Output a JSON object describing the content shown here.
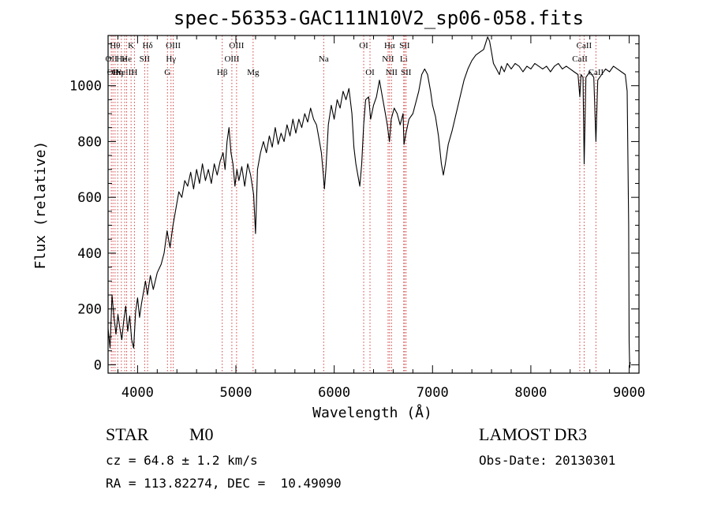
{
  "chart_data": {
    "type": "line",
    "title": "spec-56353-GAC111N10V2_sp06-058.fits",
    "xlabel": "Wavelength (Å)",
    "ylabel": "Flux (relative)",
    "xlim": [
      3700,
      9100
    ],
    "ylim": [
      -30,
      1180
    ],
    "x_ticks": [
      {
        "value": 4000,
        "label": "4000"
      },
      {
        "value": 5000,
        "label": "5000"
      },
      {
        "value": 6000,
        "label": "6000"
      },
      {
        "value": 7000,
        "label": "7000"
      },
      {
        "value": 8000,
        "label": "8000"
      },
      {
        "value": 9000,
        "label": "9000"
      }
    ],
    "y_ticks": [
      {
        "value": 0,
        "label": "0"
      },
      {
        "value": 200,
        "label": "200"
      },
      {
        "value": 400,
        "label": "400"
      },
      {
        "value": 600,
        "label": "600"
      },
      {
        "value": 800,
        "label": "800"
      },
      {
        "value": 1000,
        "label": "1000"
      }
    ],
    "series": [
      {
        "name": "flux",
        "points": [
          [
            3700,
            130
          ],
          [
            3720,
            60
          ],
          [
            3740,
            250
          ],
          [
            3760,
            170
          ],
          [
            3780,
            110
          ],
          [
            3800,
            180
          ],
          [
            3820,
            130
          ],
          [
            3840,
            90
          ],
          [
            3860,
            160
          ],
          [
            3880,
            210
          ],
          [
            3900,
            120
          ],
          [
            3920,
            175
          ],
          [
            3940,
            90
          ],
          [
            3960,
            60
          ],
          [
            3980,
            190
          ],
          [
            4000,
            240
          ],
          [
            4020,
            170
          ],
          [
            4040,
            220
          ],
          [
            4060,
            260
          ],
          [
            4080,
            300
          ],
          [
            4100,
            250
          ],
          [
            4130,
            320
          ],
          [
            4160,
            270
          ],
          [
            4200,
            330
          ],
          [
            4240,
            360
          ],
          [
            4270,
            400
          ],
          [
            4300,
            480
          ],
          [
            4330,
            420
          ],
          [
            4360,
            500
          ],
          [
            4390,
            560
          ],
          [
            4420,
            620
          ],
          [
            4450,
            600
          ],
          [
            4480,
            660
          ],
          [
            4510,
            640
          ],
          [
            4540,
            690
          ],
          [
            4570,
            630
          ],
          [
            4600,
            700
          ],
          [
            4630,
            650
          ],
          [
            4660,
            720
          ],
          [
            4690,
            660
          ],
          [
            4720,
            700
          ],
          [
            4750,
            650
          ],
          [
            4780,
            720
          ],
          [
            4810,
            680
          ],
          [
            4840,
            730
          ],
          [
            4870,
            760
          ],
          [
            4890,
            700
          ],
          [
            4910,
            800
          ],
          [
            4930,
            850
          ],
          [
            4950,
            760
          ],
          [
            4970,
            720
          ],
          [
            4990,
            640
          ],
          [
            5010,
            700
          ],
          [
            5030,
            660
          ],
          [
            5060,
            710
          ],
          [
            5090,
            640
          ],
          [
            5120,
            720
          ],
          [
            5150,
            680
          ],
          [
            5180,
            610
          ],
          [
            5200,
            470
          ],
          [
            5220,
            700
          ],
          [
            5250,
            760
          ],
          [
            5280,
            800
          ],
          [
            5310,
            760
          ],
          [
            5340,
            820
          ],
          [
            5370,
            780
          ],
          [
            5400,
            850
          ],
          [
            5430,
            790
          ],
          [
            5460,
            830
          ],
          [
            5490,
            800
          ],
          [
            5520,
            860
          ],
          [
            5550,
            820
          ],
          [
            5580,
            880
          ],
          [
            5610,
            830
          ],
          [
            5640,
            880
          ],
          [
            5670,
            850
          ],
          [
            5700,
            900
          ],
          [
            5730,
            870
          ],
          [
            5760,
            920
          ],
          [
            5790,
            880
          ],
          [
            5820,
            860
          ],
          [
            5850,
            800
          ],
          [
            5870,
            760
          ],
          [
            5890,
            680
          ],
          [
            5900,
            630
          ],
          [
            5915,
            700
          ],
          [
            5940,
            860
          ],
          [
            5970,
            930
          ],
          [
            6000,
            880
          ],
          [
            6030,
            950
          ],
          [
            6060,
            920
          ],
          [
            6090,
            980
          ],
          [
            6120,
            950
          ],
          [
            6150,
            990
          ],
          [
            6180,
            900
          ],
          [
            6200,
            780
          ],
          [
            6220,
            720
          ],
          [
            6240,
            680
          ],
          [
            6260,
            640
          ],
          [
            6280,
            720
          ],
          [
            6300,
            860
          ],
          [
            6320,
            950
          ],
          [
            6350,
            960
          ],
          [
            6370,
            880
          ],
          [
            6400,
            930
          ],
          [
            6430,
            960
          ],
          [
            6460,
            1020
          ],
          [
            6490,
            960
          ],
          [
            6520,
            900
          ],
          [
            6540,
            860
          ],
          [
            6562,
            800
          ],
          [
            6580,
            880
          ],
          [
            6610,
            920
          ],
          [
            6640,
            900
          ],
          [
            6670,
            860
          ],
          [
            6700,
            900
          ],
          [
            6710,
            790
          ],
          [
            6730,
            830
          ],
          [
            6760,
            880
          ],
          [
            6800,
            900
          ],
          [
            6830,
            940
          ],
          [
            6860,
            980
          ],
          [
            6890,
            1040
          ],
          [
            6920,
            1060
          ],
          [
            6950,
            1040
          ],
          [
            6980,
            980
          ],
          [
            7000,
            930
          ],
          [
            7030,
            890
          ],
          [
            7060,
            820
          ],
          [
            7090,
            720
          ],
          [
            7110,
            680
          ],
          [
            7130,
            720
          ],
          [
            7160,
            790
          ],
          [
            7200,
            840
          ],
          [
            7240,
            900
          ],
          [
            7280,
            960
          ],
          [
            7320,
            1020
          ],
          [
            7360,
            1060
          ],
          [
            7400,
            1090
          ],
          [
            7440,
            1110
          ],
          [
            7480,
            1120
          ],
          [
            7520,
            1130
          ],
          [
            7560,
            1175
          ],
          [
            7580,
            1160
          ],
          [
            7600,
            1120
          ],
          [
            7620,
            1080
          ],
          [
            7650,
            1060
          ],
          [
            7680,
            1040
          ],
          [
            7700,
            1070
          ],
          [
            7730,
            1050
          ],
          [
            7760,
            1080
          ],
          [
            7800,
            1060
          ],
          [
            7840,
            1080
          ],
          [
            7880,
            1070
          ],
          [
            7920,
            1050
          ],
          [
            7960,
            1070
          ],
          [
            8000,
            1060
          ],
          [
            8040,
            1080
          ],
          [
            8080,
            1070
          ],
          [
            8120,
            1060
          ],
          [
            8160,
            1070
          ],
          [
            8200,
            1050
          ],
          [
            8240,
            1070
          ],
          [
            8280,
            1080
          ],
          [
            8320,
            1060
          ],
          [
            8360,
            1070
          ],
          [
            8400,
            1060
          ],
          [
            8440,
            1050
          ],
          [
            8480,
            1040
          ],
          [
            8498,
            960
          ],
          [
            8510,
            1040
          ],
          [
            8530,
            1030
          ],
          [
            8542,
            720
          ],
          [
            8560,
            1030
          ],
          [
            8600,
            1050
          ],
          [
            8640,
            1030
          ],
          [
            8662,
            800
          ],
          [
            8680,
            1020
          ],
          [
            8720,
            1040
          ],
          [
            8760,
            1060
          ],
          [
            8800,
            1050
          ],
          [
            8840,
            1070
          ],
          [
            8880,
            1060
          ],
          [
            8920,
            1050
          ],
          [
            8960,
            1040
          ],
          [
            8980,
            980
          ],
          [
            8995,
            500
          ],
          [
            9000,
            80
          ],
          [
            9005,
            -10
          ],
          [
            9010,
            10
          ]
        ]
      }
    ],
    "line_markers": [
      {
        "wave": 3733,
        "label": "OII",
        "row": 2
      },
      {
        "wave": 3750,
        "label": "OII",
        "row": 3
      },
      {
        "wave": 3771,
        "label": "Hθ",
        "row": 1
      },
      {
        "wave": 3798,
        "label": "Hη",
        "row": 3
      },
      {
        "wave": 3835,
        "label": "He",
        "row": 2
      },
      {
        "wave": 3869,
        "label": "NeIII",
        "row": 3
      },
      {
        "wave": 3889,
        "label": "He",
        "row": 2
      },
      {
        "wave": 3934,
        "label": "K",
        "row": 1
      },
      {
        "wave": 3968,
        "label": "H",
        "row": 3
      },
      {
        "wave": 4072,
        "label": "SII",
        "row": 2
      },
      {
        "wave": 4102,
        "label": "Hδ",
        "row": 1
      },
      {
        "wave": 4304,
        "label": "G",
        "row": 3
      },
      {
        "wave": 4340,
        "label": "Hγ",
        "row": 2
      },
      {
        "wave": 4363,
        "label": "OIII",
        "row": 1
      },
      {
        "wave": 4861,
        "label": "Hβ",
        "row": 3
      },
      {
        "wave": 4959,
        "label": "OIII",
        "row": 2
      },
      {
        "wave": 5007,
        "label": "OIII",
        "row": 1
      },
      {
        "wave": 5175,
        "label": "Mg",
        "row": 3
      },
      {
        "wave": 5893,
        "label": "Na",
        "row": 2
      },
      {
        "wave": 6300,
        "label": "OI",
        "row": 1
      },
      {
        "wave": 6364,
        "label": "OI",
        "row": 3
      },
      {
        "wave": 6548,
        "label": "NII",
        "row": 2
      },
      {
        "wave": 6563,
        "label": "Hα",
        "row": 1
      },
      {
        "wave": 6583,
        "label": "NII",
        "row": 3
      },
      {
        "wave": 6707,
        "label": "Li",
        "row": 2
      },
      {
        "wave": 6716,
        "label": "SII",
        "row": 1
      },
      {
        "wave": 6731,
        "label": "SII",
        "row": 3
      },
      {
        "wave": 8498,
        "label": "CaII",
        "row": 2
      },
      {
        "wave": 8542,
        "label": "CaII",
        "row": 1
      },
      {
        "wave": 8662,
        "label": "CaII",
        "row": 3
      }
    ]
  },
  "info": {
    "class": "STAR",
    "subclass": "M0",
    "cz": "cz = 64.8 ± 1.2 km/s",
    "coords": "RA = 113.82274, DEC =  10.49090",
    "survey": "LAMOST DR3",
    "obs_date": "Obs-Date: 20130301"
  },
  "colors": {
    "marker": "#d24040",
    "axis": "#000000",
    "line": "#000000"
  }
}
